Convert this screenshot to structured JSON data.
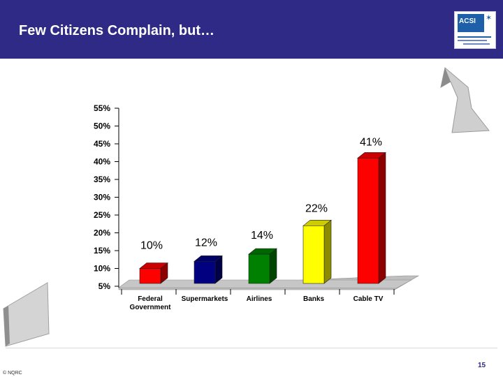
{
  "slide": {
    "title": "Few Citizens Complain, but…",
    "logo_text": "ACSI",
    "copyright": "© NQRC",
    "page_number": "15"
  },
  "chart_data": {
    "type": "bar",
    "categories": [
      "Federal\nGovernment",
      "Supermarkets",
      "Airlines",
      "Banks",
      "Cable TV"
    ],
    "values": [
      10,
      12,
      14,
      22,
      41
    ],
    "data_labels": [
      "10%",
      "12%",
      "14%",
      "22%",
      "41%"
    ],
    "colors": [
      "#ff0000",
      "#000080",
      "#008000",
      "#ffff00",
      "#ff0000"
    ],
    "y_ticks": [
      "55%",
      "50%",
      "45%",
      "40%",
      "35%",
      "30%",
      "25%",
      "20%",
      "15%",
      "10%",
      "5%"
    ],
    "ylim": [
      5,
      55
    ],
    "title": "",
    "xlabel": "",
    "ylabel": "",
    "grid": false,
    "legend": "none"
  },
  "colors": {
    "header": "#2e2a85",
    "floor": "#bfbfbf"
  }
}
